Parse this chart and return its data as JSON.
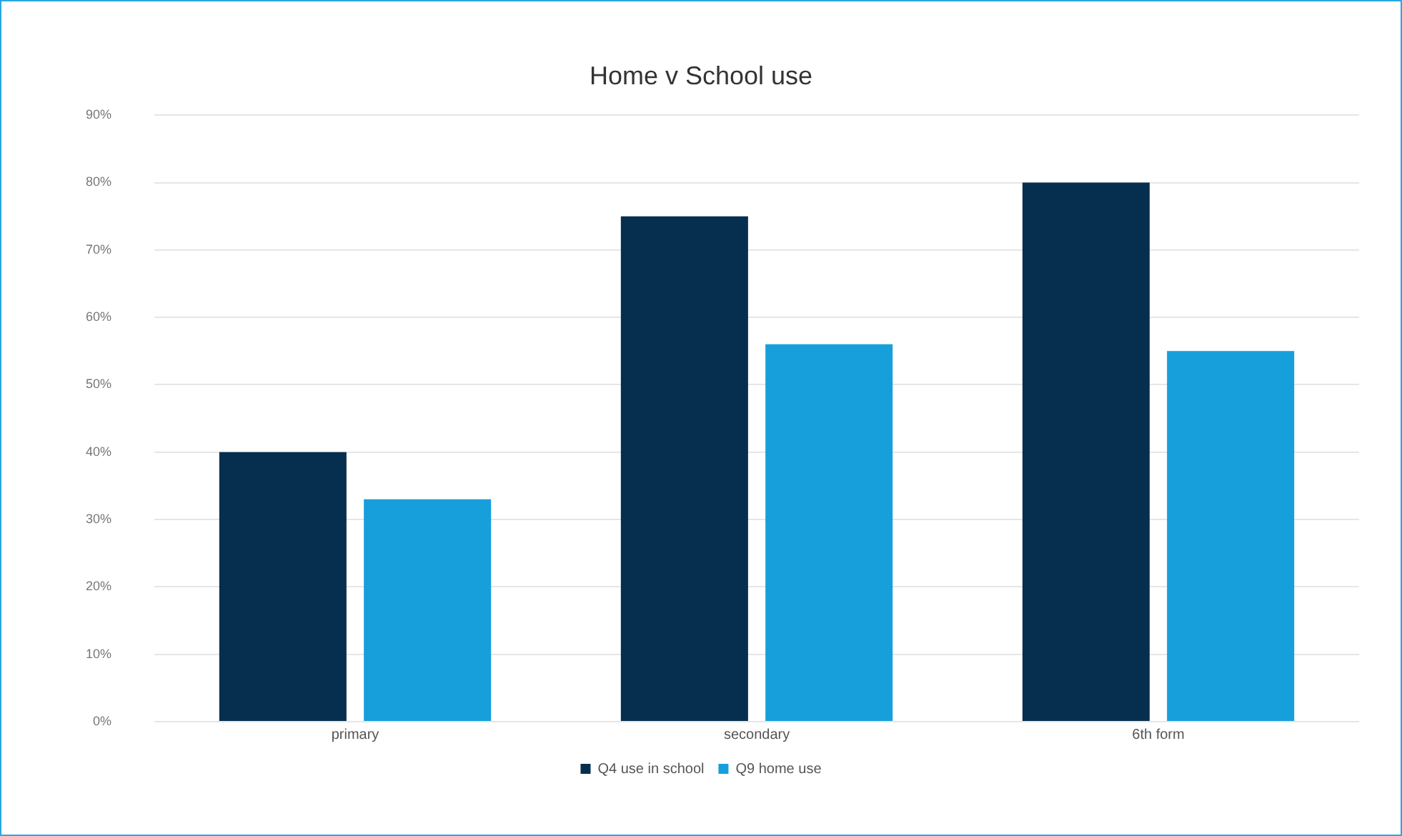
{
  "chart_data": {
    "type": "bar",
    "title": "Home v School use",
    "categories": [
      "primary",
      "secondary",
      "6th form"
    ],
    "series": [
      {
        "name": "Q4 use in school",
        "color": "#062f4f",
        "values": [
          40,
          75,
          80
        ]
      },
      {
        "name": "Q9 home use",
        "color": "#179fdb",
        "values": [
          33,
          56,
          55
        ]
      }
    ],
    "ylim": [
      0,
      90
    ],
    "yticks": [
      {
        "value": 0,
        "label": "0%"
      },
      {
        "value": 10,
        "label": "10%"
      },
      {
        "value": 20,
        "label": "20%"
      },
      {
        "value": 30,
        "label": "30%"
      },
      {
        "value": 40,
        "label": "40%"
      },
      {
        "value": 50,
        "label": "50%"
      },
      {
        "value": 60,
        "label": "60%"
      },
      {
        "value": 70,
        "label": "70%"
      },
      {
        "value": 80,
        "label": "80%"
      },
      {
        "value": 90,
        "label": "90%"
      }
    ],
    "grid": "y",
    "legend": "bottom"
  }
}
